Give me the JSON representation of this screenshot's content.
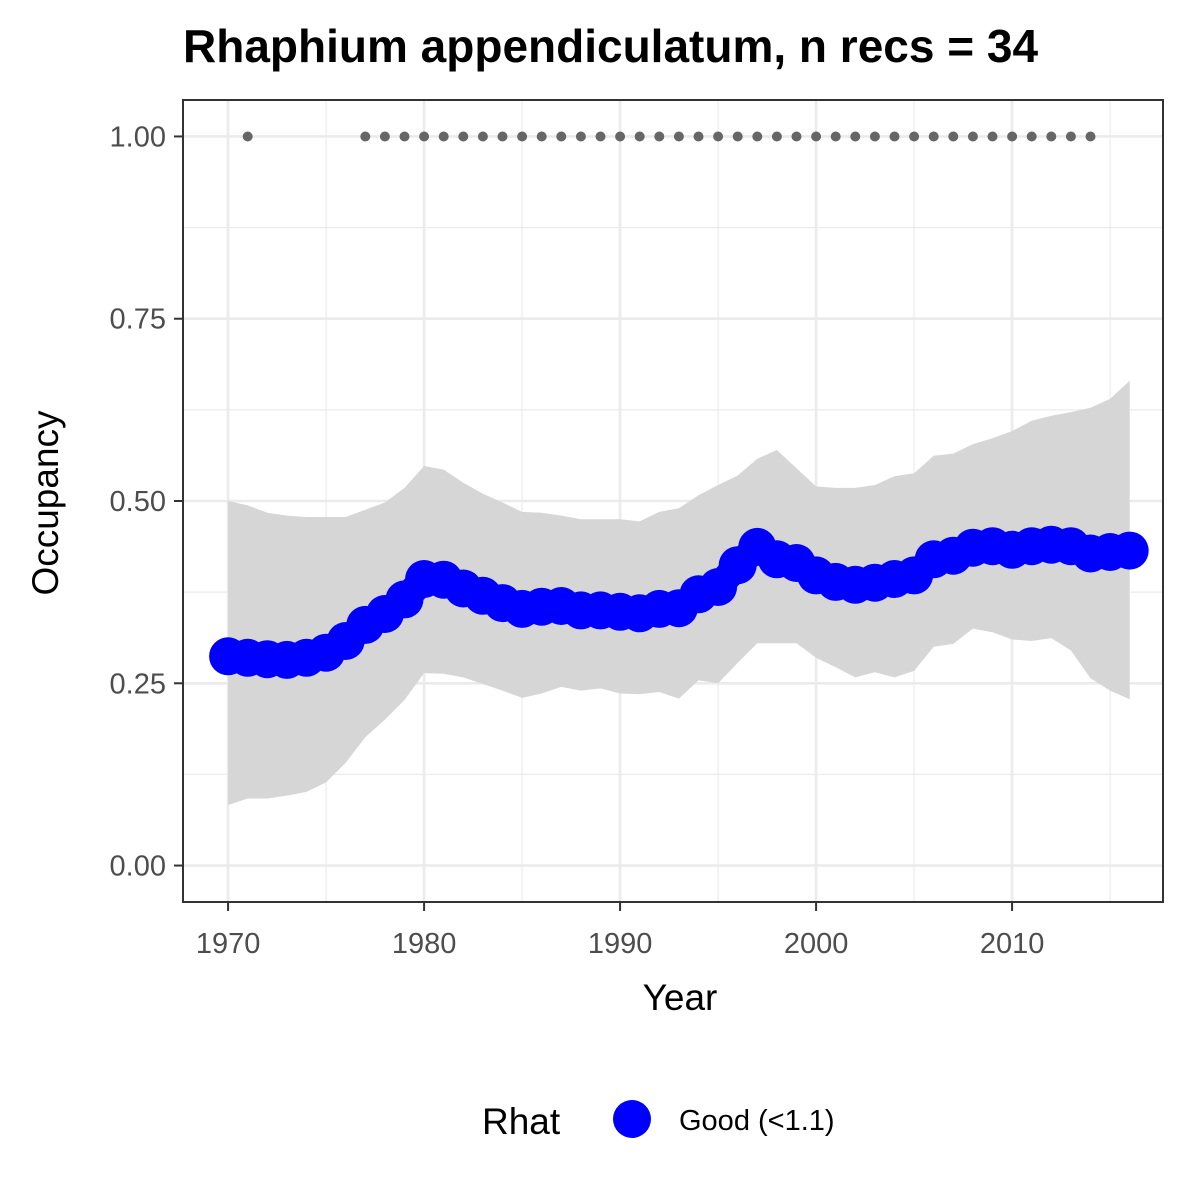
{
  "chart_data": {
    "type": "line",
    "title": "Rhaphium appendiculatum, n recs = 34",
    "xlabel": "Year",
    "ylabel": "Occupancy",
    "xlim": [
      1967.7,
      2017.7
    ],
    "ylim": [
      -0.05,
      1.05
    ],
    "x_ticks": [
      1970,
      1980,
      1990,
      2000,
      2010
    ],
    "y_ticks": [
      "0.00",
      "0.25",
      "0.50",
      "0.75",
      "1.00"
    ],
    "y_minor_ticks": [
      0.125,
      0.375,
      0.625,
      0.875
    ],
    "x_minor_ticks": [
      1975,
      1985,
      1995,
      2005,
      2015
    ],
    "grid": true,
    "colors": {
      "estimate": "#0000ff",
      "ribbon": "#d6d6d6",
      "records": "#666666",
      "grid": "#ebebeb",
      "panel_border": "#333333"
    },
    "series": [
      {
        "x": [
          1970,
          1971,
          1972,
          1973,
          1974,
          1975,
          1976,
          1977,
          1978,
          1979,
          1980,
          1981,
          1982,
          1983,
          1984,
          1985,
          1986,
          1987,
          1988,
          1989,
          1990,
          1991,
          1992,
          1993,
          1994,
          1995,
          1996,
          1997,
          1998,
          1999,
          2000,
          2001,
          2002,
          2003,
          2004,
          2005,
          2006,
          2007,
          2008,
          2009,
          2010,
          2011,
          2012,
          2013,
          2014,
          2015,
          2016
        ],
        "mean": [
          0.287,
          0.285,
          0.283,
          0.282,
          0.285,
          0.292,
          0.308,
          0.33,
          0.345,
          0.365,
          0.393,
          0.392,
          0.38,
          0.37,
          0.36,
          0.352,
          0.355,
          0.356,
          0.35,
          0.35,
          0.348,
          0.346,
          0.352,
          0.353,
          0.372,
          0.382,
          0.412,
          0.437,
          0.42,
          0.415,
          0.398,
          0.389,
          0.385,
          0.388,
          0.393,
          0.398,
          0.42,
          0.425,
          0.436,
          0.438,
          0.433,
          0.438,
          0.44,
          0.438,
          0.428,
          0.43,
          0.432
        ],
        "lower": [
          0.083,
          0.092,
          0.092,
          0.096,
          0.101,
          0.114,
          0.141,
          0.176,
          0.2,
          0.227,
          0.264,
          0.263,
          0.258,
          0.249,
          0.24,
          0.23,
          0.236,
          0.245,
          0.24,
          0.243,
          0.236,
          0.235,
          0.238,
          0.229,
          0.254,
          0.25,
          0.278,
          0.305,
          0.305,
          0.305,
          0.285,
          0.272,
          0.258,
          0.265,
          0.258,
          0.267,
          0.3,
          0.304,
          0.325,
          0.32,
          0.31,
          0.308,
          0.312,
          0.295,
          0.257,
          0.24,
          0.228
        ],
        "upper": [
          0.5,
          0.494,
          0.484,
          0.48,
          0.478,
          0.478,
          0.478,
          0.488,
          0.498,
          0.518,
          0.548,
          0.543,
          0.525,
          0.51,
          0.498,
          0.485,
          0.484,
          0.48,
          0.475,
          0.475,
          0.475,
          0.472,
          0.485,
          0.49,
          0.508,
          0.522,
          0.535,
          0.558,
          0.57,
          0.545,
          0.52,
          0.518,
          0.518,
          0.522,
          0.534,
          0.538,
          0.562,
          0.565,
          0.578,
          0.586,
          0.596,
          0.61,
          0.617,
          0.622,
          0.628,
          0.64,
          0.665
        ]
      }
    ],
    "records": {
      "x": [
        1971,
        1977,
        1978,
        1979,
        1980,
        1981,
        1982,
        1983,
        1984,
        1985,
        1986,
        1987,
        1988,
        1989,
        1990,
        1991,
        1992,
        1993,
        1994,
        1995,
        1996,
        1997,
        1998,
        1999,
        2000,
        2001,
        2002,
        2003,
        2004,
        2005,
        2006,
        2007,
        2008,
        2009,
        2010,
        2011,
        2012,
        2013,
        2014
      ],
      "y": 1.0
    },
    "legend": {
      "title": "Rhat",
      "placement": "bottom",
      "entries": [
        {
          "label": "Good (<1.1)",
          "color": "#0000ff"
        }
      ]
    }
  }
}
